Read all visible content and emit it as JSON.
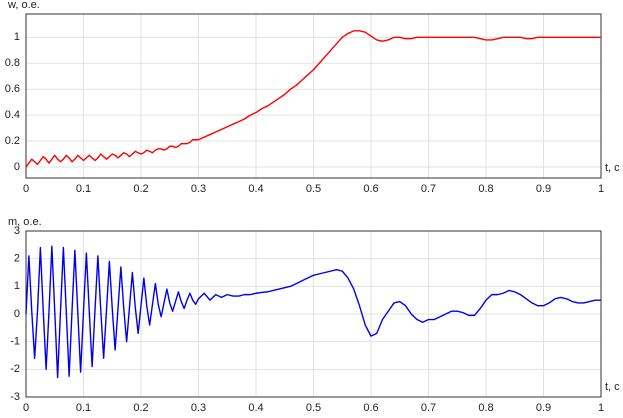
{
  "chart_data": [
    {
      "type": "line",
      "y_label": "w, o.e.",
      "x_label": "t, c",
      "color": "#ff0000",
      "x": [
        0,
        0.005,
        0.01,
        0.015,
        0.02,
        0.025,
        0.03,
        0.035,
        0.04,
        0.045,
        0.05,
        0.055,
        0.06,
        0.065,
        0.07,
        0.075,
        0.08,
        0.085,
        0.09,
        0.095,
        0.1,
        0.105,
        0.11,
        0.115,
        0.12,
        0.125,
        0.13,
        0.135,
        0.14,
        0.145,
        0.15,
        0.155,
        0.16,
        0.165,
        0.17,
        0.175,
        0.18,
        0.185,
        0.19,
        0.195,
        0.2,
        0.205,
        0.21,
        0.215,
        0.22,
        0.225,
        0.23,
        0.235,
        0.24,
        0.245,
        0.25,
        0.255,
        0.26,
        0.265,
        0.27,
        0.275,
        0.28,
        0.285,
        0.29,
        0.295,
        0.3,
        0.31,
        0.32,
        0.33,
        0.34,
        0.35,
        0.36,
        0.37,
        0.38,
        0.39,
        0.4,
        0.41,
        0.42,
        0.43,
        0.44,
        0.45,
        0.46,
        0.47,
        0.48,
        0.49,
        0.5,
        0.51,
        0.52,
        0.53,
        0.54,
        0.55,
        0.56,
        0.57,
        0.58,
        0.59,
        0.6,
        0.61,
        0.62,
        0.63,
        0.64,
        0.65,
        0.66,
        0.67,
        0.68,
        0.69,
        0.7,
        0.71,
        0.72,
        0.73,
        0.74,
        0.75,
        0.76,
        0.77,
        0.78,
        0.79,
        0.8,
        0.81,
        0.82,
        0.83,
        0.84,
        0.85,
        0.86,
        0.87,
        0.88,
        0.89,
        0.9,
        0.91,
        0.92,
        0.93,
        0.94,
        0.95,
        0.96,
        0.97,
        0.98,
        0.99,
        1
      ],
      "values": [
        0,
        0.03,
        0.06,
        0.04,
        0.02,
        0.05,
        0.08,
        0.06,
        0.03,
        0.06,
        0.09,
        0.06,
        0.04,
        0.06,
        0.09,
        0.07,
        0.04,
        0.06,
        0.09,
        0.07,
        0.05,
        0.07,
        0.09,
        0.07,
        0.05,
        0.07,
        0.1,
        0.08,
        0.06,
        0.08,
        0.1,
        0.09,
        0.07,
        0.09,
        0.11,
        0.1,
        0.08,
        0.1,
        0.12,
        0.11,
        0.1,
        0.11,
        0.13,
        0.12,
        0.11,
        0.13,
        0.14,
        0.14,
        0.13,
        0.14,
        0.16,
        0.16,
        0.15,
        0.16,
        0.18,
        0.18,
        0.18,
        0.19,
        0.21,
        0.21,
        0.21,
        0.23,
        0.25,
        0.27,
        0.29,
        0.31,
        0.33,
        0.35,
        0.37,
        0.4,
        0.42,
        0.45,
        0.47,
        0.5,
        0.53,
        0.56,
        0.6,
        0.63,
        0.67,
        0.71,
        0.75,
        0.8,
        0.85,
        0.9,
        0.95,
        1.0,
        1.03,
        1.05,
        1.05,
        1.04,
        1.01,
        0.98,
        0.97,
        0.98,
        1.0,
        1.0,
        0.99,
        0.99,
        1.0,
        1.0,
        1.0,
        1.0,
        1.0,
        1.0,
        1.0,
        1.0,
        1.0,
        1.0,
        1.0,
        0.99,
        0.98,
        0.98,
        0.99,
        1.0,
        1.0,
        1.0,
        1.0,
        0.99,
        0.99,
        1.0,
        1.0,
        1.0,
        1.0,
        1.0,
        1.0,
        1.0,
        1.0,
        1.0,
        1.0,
        1.0,
        1.0
      ],
      "xlim": [
        0,
        1
      ],
      "xticks": [
        0,
        0.1,
        0.2,
        0.3,
        0.4,
        0.5,
        0.6,
        0.7,
        0.8,
        0.9,
        1
      ],
      "ylim": [
        -0.085,
        1.18
      ],
      "yticks": [
        0,
        0.2,
        0.4,
        0.6,
        0.8,
        1
      ],
      "grid": true
    },
    {
      "type": "line",
      "y_label": "m, o.e.",
      "x_label": "t, c",
      "color": "#0000ee",
      "x": [
        0,
        0.005,
        0.01,
        0.015,
        0.02,
        0.025,
        0.03,
        0.035,
        0.04,
        0.045,
        0.05,
        0.055,
        0.06,
        0.065,
        0.07,
        0.075,
        0.08,
        0.085,
        0.09,
        0.095,
        0.1,
        0.105,
        0.11,
        0.115,
        0.12,
        0.125,
        0.13,
        0.135,
        0.14,
        0.145,
        0.15,
        0.155,
        0.16,
        0.165,
        0.17,
        0.175,
        0.18,
        0.185,
        0.19,
        0.195,
        0.2,
        0.205,
        0.21,
        0.215,
        0.22,
        0.225,
        0.23,
        0.235,
        0.24,
        0.245,
        0.25,
        0.255,
        0.26,
        0.265,
        0.27,
        0.275,
        0.28,
        0.285,
        0.29,
        0.295,
        0.3,
        0.31,
        0.32,
        0.33,
        0.34,
        0.35,
        0.36,
        0.37,
        0.38,
        0.39,
        0.4,
        0.41,
        0.42,
        0.43,
        0.44,
        0.45,
        0.46,
        0.47,
        0.48,
        0.49,
        0.5,
        0.51,
        0.52,
        0.53,
        0.54,
        0.55,
        0.56,
        0.57,
        0.58,
        0.59,
        0.6,
        0.61,
        0.62,
        0.63,
        0.64,
        0.65,
        0.66,
        0.67,
        0.68,
        0.69,
        0.7,
        0.71,
        0.72,
        0.73,
        0.74,
        0.75,
        0.76,
        0.77,
        0.78,
        0.79,
        0.8,
        0.81,
        0.82,
        0.83,
        0.84,
        0.85,
        0.86,
        0.87,
        0.88,
        0.89,
        0.9,
        0.91,
        0.92,
        0.93,
        0.94,
        0.95,
        0.96,
        0.97,
        0.98,
        0.99,
        1
      ],
      "values": [
        0,
        2.1,
        0.1,
        -1.6,
        0.1,
        2.4,
        0.1,
        -2.0,
        0.1,
        2.45,
        0.1,
        -2.3,
        0.1,
        2.4,
        0.1,
        -2.25,
        0.1,
        2.3,
        0.1,
        -2.1,
        0.1,
        2.2,
        0.1,
        -1.9,
        0.15,
        2.1,
        0.15,
        -1.6,
        0.15,
        1.9,
        0.2,
        -1.3,
        0.2,
        1.7,
        0.2,
        -1.0,
        0.25,
        1.5,
        0.25,
        -0.7,
        0.3,
        1.3,
        0.3,
        -0.4,
        0.35,
        1.1,
        0.35,
        -0.1,
        0.4,
        0.9,
        0.4,
        0.1,
        0.45,
        0.8,
        0.45,
        0.2,
        0.5,
        0.75,
        0.5,
        0.35,
        0.55,
        0.75,
        0.5,
        0.7,
        0.6,
        0.7,
        0.65,
        0.65,
        0.7,
        0.7,
        0.75,
        0.78,
        0.8,
        0.85,
        0.9,
        0.95,
        1.0,
        1.1,
        1.2,
        1.3,
        1.4,
        1.45,
        1.5,
        1.55,
        1.6,
        1.55,
        1.3,
        0.9,
        0.3,
        -0.4,
        -0.8,
        -0.7,
        -0.2,
        0.1,
        0.4,
        0.45,
        0.3,
        0.0,
        -0.2,
        -0.3,
        -0.2,
        -0.2,
        -0.1,
        0.0,
        0.1,
        0.1,
        0.05,
        -0.05,
        -0.05,
        0.2,
        0.5,
        0.7,
        0.7,
        0.75,
        0.85,
        0.8,
        0.7,
        0.55,
        0.4,
        0.3,
        0.3,
        0.4,
        0.55,
        0.6,
        0.55,
        0.45,
        0.4,
        0.4,
        0.45,
        0.5,
        0.5
      ],
      "xlim": [
        0,
        1
      ],
      "xticks": [
        0,
        0.1,
        0.2,
        0.3,
        0.4,
        0.5,
        0.6,
        0.7,
        0.8,
        0.9,
        1
      ],
      "ylim": [
        -3,
        3
      ],
      "yticks": [
        -3,
        -2,
        -1,
        0,
        1,
        2,
        3
      ],
      "grid": true
    }
  ]
}
